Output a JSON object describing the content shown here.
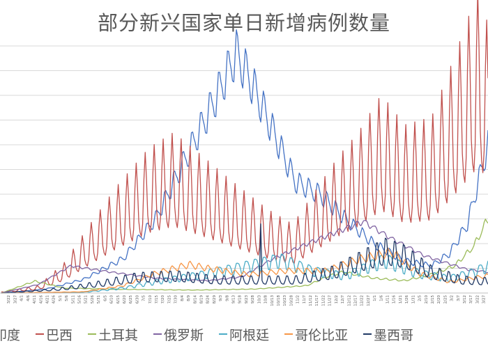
{
  "chart_data": {
    "type": "line",
    "title": "部分新兴国家单日新增病例数量",
    "xlabel": "",
    "ylabel": "",
    "grid": true,
    "legend_position": "bottom",
    "x_start_date": "2020-03-17",
    "x_end_date": "2021-03-31",
    "x_tick_labels": [
      "3/22",
      "3/27",
      "4/1",
      "4/6",
      "4/11",
      "4/16",
      "4/21",
      "4/26",
      "5/1",
      "5/6",
      "5/11",
      "5/16",
      "5/21",
      "5/26",
      "5/31",
      "6/5",
      "6/10",
      "6/15",
      "6/20",
      "6/25",
      "6/30",
      "7/5",
      "7/10",
      "7/15",
      "7/20",
      "7/25",
      "7/30",
      "8/4",
      "8/9",
      "8/14",
      "8/19",
      "8/24",
      "8/29",
      "9/3",
      "9/8",
      "9/13",
      "9/18",
      "9/23",
      "9/28",
      "10/3",
      "10/8",
      "10/13",
      "10/18",
      "10/23",
      "10/28",
      "11/2",
      "11/7",
      "11/12",
      "11/17",
      "11/22",
      "11/27",
      "12/2",
      "12/7",
      "12/12",
      "12/17",
      "12/22",
      "12/27",
      "1/1",
      "1/6",
      "1/11",
      "1/16",
      "1/21",
      "1/26",
      "1/31",
      "2/5",
      "2/10",
      "2/15",
      "2/20",
      "2/25",
      "3/2",
      "3/7",
      "3/12",
      "3/17",
      "3/22",
      "3/27"
    ],
    "ylim": [
      0,
      100000
    ],
    "y_tick_step": 10000,
    "series_note": "Values estimated from line positions; daily series with weekly oscillation",
    "series": [
      {
        "name": "印度",
        "color": "#4472c4",
        "weekly_amp": 0.12,
        "peak_max_amp": 0.3,
        "points": [
          [
            "2020-03-17",
            0
          ],
          [
            "2020-04-20",
            1500
          ],
          [
            "2020-05-20",
            5500
          ],
          [
            "2020-06-20",
            14000
          ],
          [
            "2020-07-15",
            30000
          ],
          [
            "2020-08-10",
            57000
          ],
          [
            "2020-08-30",
            78000
          ],
          [
            "2020-09-16",
            97000
          ],
          [
            "2020-09-28",
            85000
          ],
          [
            "2020-10-15",
            65000
          ],
          [
            "2020-11-01",
            45000
          ],
          [
            "2020-11-20",
            40000
          ],
          [
            "2020-12-10",
            30000
          ],
          [
            "2021-01-01",
            20000
          ],
          [
            "2021-01-25",
            13000
          ],
          [
            "2021-02-15",
            11000
          ],
          [
            "2021-03-01",
            16000
          ],
          [
            "2021-03-15",
            28000
          ],
          [
            "2021-03-31",
            60000
          ]
        ]
      },
      {
        "name": "巴西",
        "color": "#c0504d",
        "weekly_amp": 0.55,
        "points": [
          [
            "2020-03-17",
            300
          ],
          [
            "2020-04-15",
            2000
          ],
          [
            "2020-05-05",
            8000
          ],
          [
            "2020-05-25",
            18000
          ],
          [
            "2020-06-15",
            28000
          ],
          [
            "2020-07-10",
            38000
          ],
          [
            "2020-07-29",
            42000
          ],
          [
            "2020-08-20",
            36000
          ],
          [
            "2020-09-10",
            30000
          ],
          [
            "2020-10-10",
            22000
          ],
          [
            "2020-10-30",
            18000
          ],
          [
            "2020-11-15",
            26000
          ],
          [
            "2020-12-05",
            36000
          ],
          [
            "2020-12-20",
            42000
          ],
          [
            "2021-01-07",
            52000
          ],
          [
            "2021-01-25",
            44000
          ],
          [
            "2021-02-15",
            46000
          ],
          [
            "2021-03-05",
            62000
          ],
          [
            "2021-03-24",
            80000
          ],
          [
            "2021-03-31",
            70000
          ]
        ]
      },
      {
        "name": "土耳其",
        "color": "#9bbb59",
        "weekly_amp": 0.08,
        "points": [
          [
            "2020-03-17",
            0
          ],
          [
            "2020-04-12",
            4800
          ],
          [
            "2020-05-05",
            2000
          ],
          [
            "2020-06-15",
            1500
          ],
          [
            "2020-08-15",
            1200
          ],
          [
            "2020-09-30",
            1600
          ],
          [
            "2020-11-10",
            3000
          ],
          [
            "2020-11-25",
            6500
          ],
          [
            "2020-12-08",
            8500
          ],
          [
            "2021-01-01",
            6000
          ],
          [
            "2021-01-25",
            5000
          ],
          [
            "2021-02-15",
            7500
          ],
          [
            "2021-03-05",
            11000
          ],
          [
            "2021-03-20",
            19000
          ],
          [
            "2021-03-31",
            30000
          ]
        ]
      },
      {
        "name": "俄罗斯",
        "color": "#8064a2",
        "weekly_amp": 0.05,
        "points": [
          [
            "2020-03-17",
            0
          ],
          [
            "2020-04-15",
            3500
          ],
          [
            "2020-05-10",
            11000
          ],
          [
            "2020-06-10",
            8500
          ],
          [
            "2020-07-15",
            6000
          ],
          [
            "2020-08-25",
            5000
          ],
          [
            "2020-09-20",
            6500
          ],
          [
            "2020-10-15",
            14000
          ],
          [
            "2020-11-15",
            21000
          ],
          [
            "2020-12-24",
            29000
          ],
          [
            "2021-01-15",
            22000
          ],
          [
            "2021-02-10",
            15000
          ],
          [
            "2021-03-15",
            9500
          ],
          [
            "2021-03-31",
            8500
          ]
        ]
      },
      {
        "name": "阿根廷",
        "color": "#4bacc6",
        "weekly_amp": 0.3,
        "points": [
          [
            "2020-03-17",
            0
          ],
          [
            "2020-05-20",
            300
          ],
          [
            "2020-06-20",
            2000
          ],
          [
            "2020-07-20",
            5000
          ],
          [
            "2020-08-20",
            7500
          ],
          [
            "2020-09-25",
            11000
          ],
          [
            "2020-10-20",
            13500
          ],
          [
            "2020-11-15",
            9000
          ],
          [
            "2020-12-10",
            7000
          ],
          [
            "2021-01-10",
            13500
          ],
          [
            "2021-02-05",
            8000
          ],
          [
            "2021-03-01",
            6000
          ],
          [
            "2021-03-20",
            8500
          ],
          [
            "2021-03-31",
            11000
          ]
        ]
      },
      {
        "name": "哥伦比亚",
        "color": "#f79646",
        "weekly_amp": 0.15,
        "points": [
          [
            "2020-03-17",
            0
          ],
          [
            "2020-05-20",
            500
          ],
          [
            "2020-06-20",
            3000
          ],
          [
            "2020-07-15",
            8000
          ],
          [
            "2020-08-10",
            11500
          ],
          [
            "2020-08-25",
            10000
          ],
          [
            "2020-09-25",
            7500
          ],
          [
            "2020-10-25",
            9000
          ],
          [
            "2020-11-25",
            9000
          ],
          [
            "2020-12-20",
            13500
          ],
          [
            "2021-01-15",
            16500
          ],
          [
            "2021-02-05",
            8000
          ],
          [
            "2021-03-01",
            4500
          ],
          [
            "2021-03-31",
            7000
          ]
        ]
      },
      {
        "name": "墨西哥",
        "color": "#1f3864",
        "weekly_amp": 0.45,
        "spike": [
          "2020-10-05",
          28000
        ],
        "points": [
          [
            "2020-03-17",
            0
          ],
          [
            "2020-05-01",
            1500
          ],
          [
            "2020-06-01",
            3500
          ],
          [
            "2020-07-01",
            6000
          ],
          [
            "2020-08-01",
            6500
          ],
          [
            "2020-09-01",
            5000
          ],
          [
            "2020-10-01",
            5000
          ],
          [
            "2020-11-01",
            5000
          ],
          [
            "2020-12-01",
            8000
          ],
          [
            "2021-01-10",
            16000
          ],
          [
            "2021-01-25",
            14000
          ],
          [
            "2021-02-15",
            8000
          ],
          [
            "2021-03-10",
            5000
          ],
          [
            "2021-03-31",
            4500
          ]
        ]
      }
    ]
  }
}
